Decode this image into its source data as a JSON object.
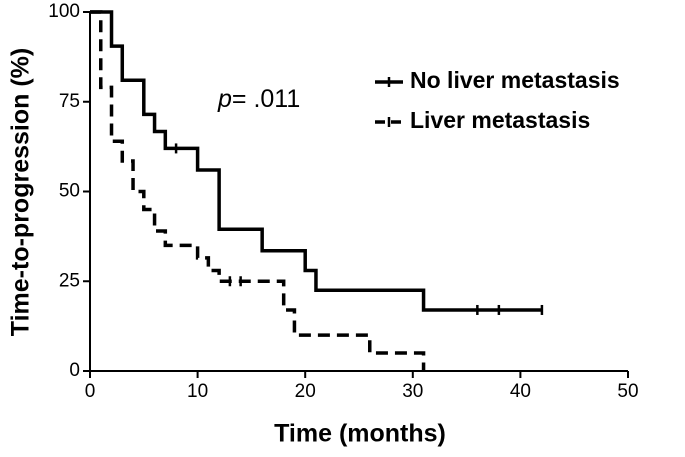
{
  "chart_data": {
    "type": "step",
    "xlabel": "Time (months)",
    "ylabel": "Time-to-progression (%)",
    "annotation_italic": "p",
    "annotation": "= .011",
    "xlim": [
      0,
      50
    ],
    "xticks": [
      0,
      10,
      20,
      30,
      40,
      50
    ],
    "ylim": [
      0,
      100
    ],
    "yticks": [
      0,
      25,
      50,
      75,
      100
    ],
    "legend": "upper-right",
    "series": [
      {
        "name": "No liver metastasis",
        "color": "#000000",
        "dashed": false,
        "x": [
          0,
          2,
          3,
          5,
          6,
          7,
          10,
          12,
          16,
          20,
          21,
          31,
          42
        ],
        "values": [
          100,
          90.5,
          81,
          71.5,
          66.7,
          62,
          56,
          39.5,
          33.5,
          28,
          22.5,
          17,
          17
        ],
        "censored_x": [
          8,
          36,
          38,
          42
        ],
        "censored_values": [
          62,
          17,
          17,
          17
        ]
      },
      {
        "name": "Liver metastasis",
        "color": "#000000",
        "dashed": true,
        "x": [
          0,
          1,
          2,
          3,
          4,
          5,
          6,
          7,
          10,
          11,
          12,
          18,
          19,
          26,
          31
        ],
        "values": [
          100,
          79,
          64,
          58.5,
          50,
          45,
          39,
          35,
          31.5,
          28,
          25,
          17,
          10,
          5,
          0
        ],
        "censored_x": [
          13,
          14
        ],
        "censored_values": [
          25,
          25
        ]
      }
    ]
  }
}
